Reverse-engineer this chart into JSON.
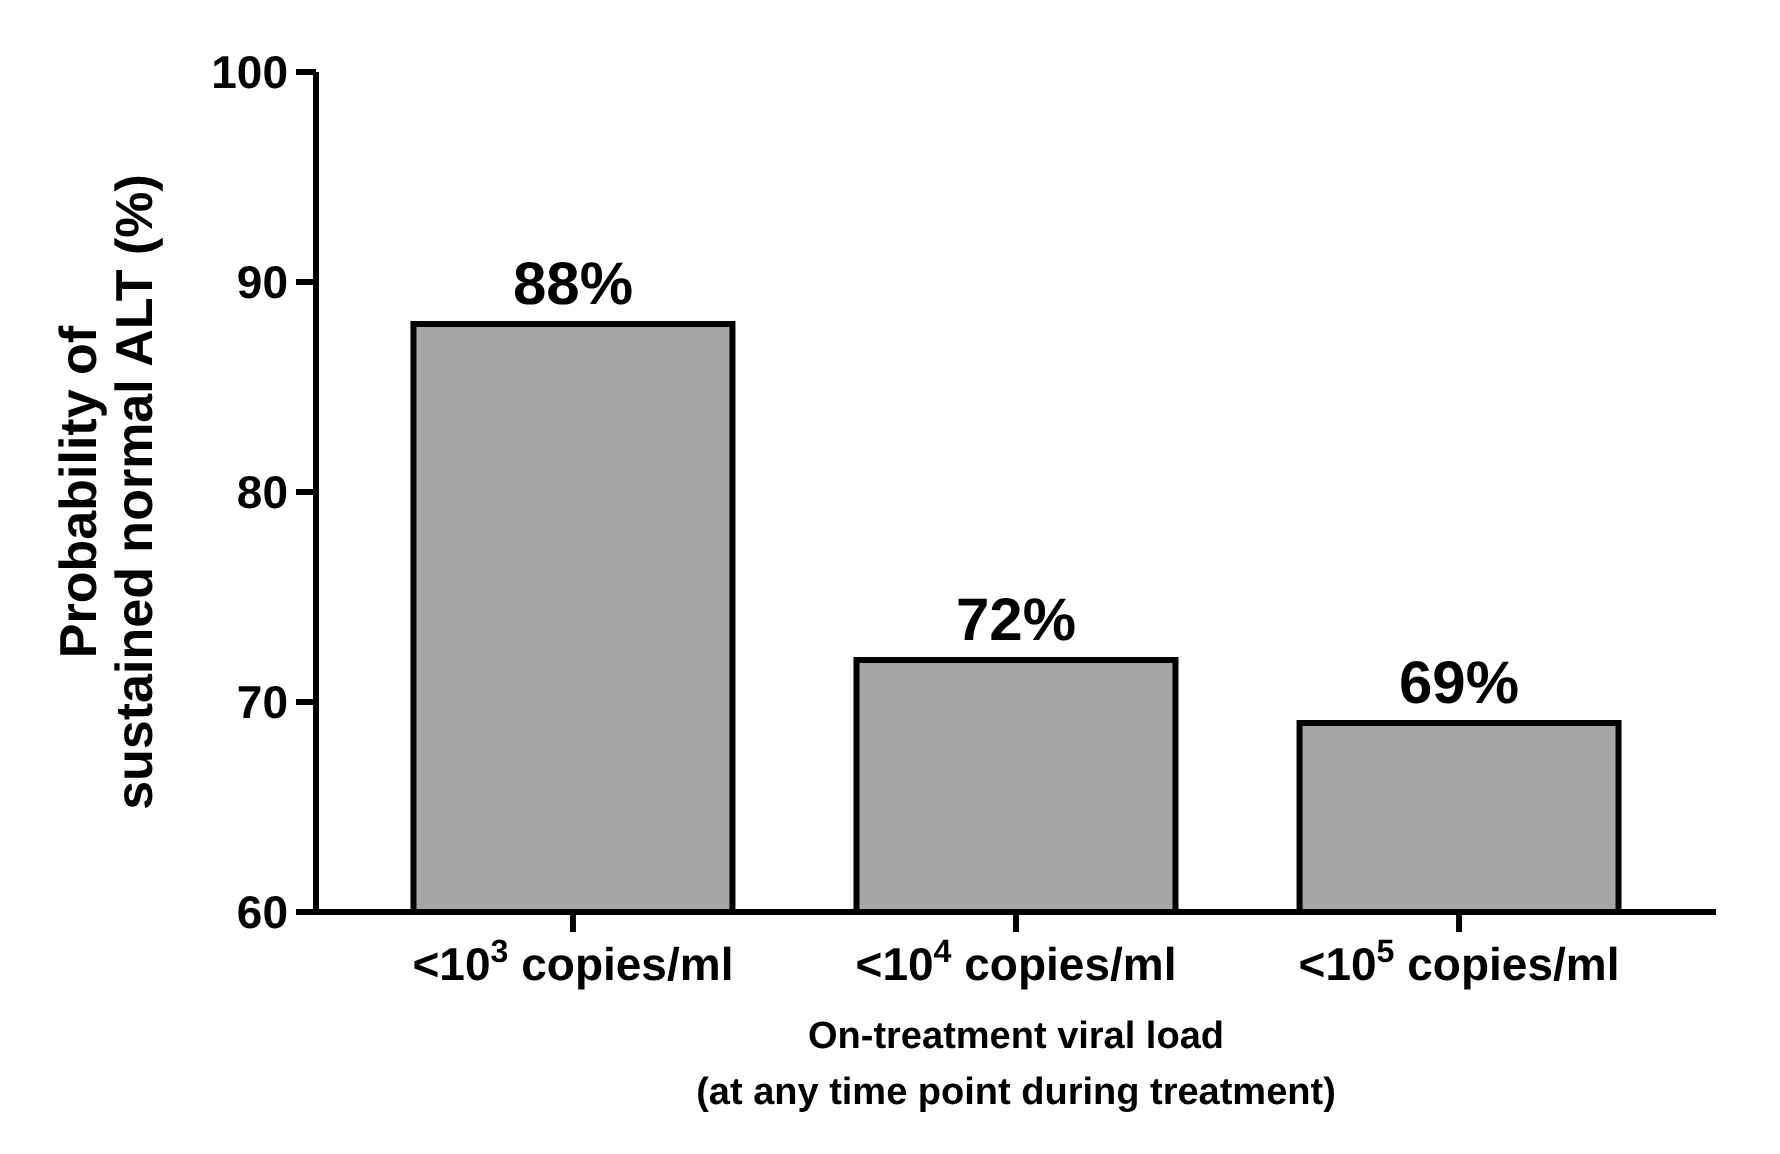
{
  "chart_data": {
    "type": "bar",
    "categories": [
      "<10$^{3}$ copies/ml",
      "<10$^{4}$ copies/ml",
      "<10$^{5}$ copies/ml"
    ],
    "values": [
      88,
      72,
      69
    ],
    "color": "#a6a6a6",
    "value_labels": [
      "88%",
      "72%",
      "69%"
    ],
    "ylim": [
      60,
      100
    ],
    "yticks": [
      60,
      70,
      80,
      90,
      100
    ],
    "grid": false,
    "xlabel": "On-treatment viral load\n(at any time point during treatment)",
    "ylabel": "Probability of\nsustained normal ALT (%)"
  }
}
